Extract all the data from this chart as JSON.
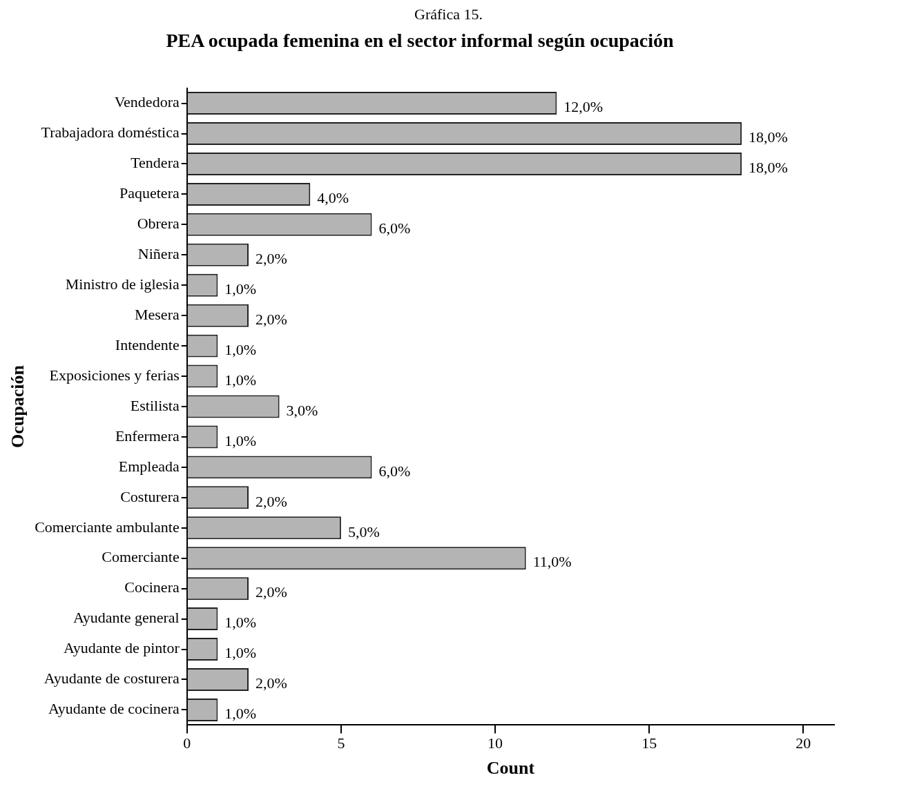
{
  "chart_data": {
    "type": "bar",
    "orientation": "horizontal",
    "title": "PEA ocupada femenina en el sector informal según ocupación",
    "xlabel": "Count",
    "ylabel": "Ocupación",
    "annotations": [
      "Gráfica 15."
    ],
    "categories": [
      "Vendedora",
      "Trabajadora doméstica",
      "Tendera",
      "Paquetera",
      "Obrera",
      "Niñera",
      "Ministro de iglesia",
      "Mesera",
      "Intendente",
      "Exposiciones y ferias",
      "Estilista",
      "Enfermera",
      "Empleada",
      "Costurera",
      "Comerciante ambulante",
      "Comerciante",
      "Cocinera",
      "Ayudante general",
      "Ayudante de pintor",
      "Ayudante de costurera",
      "Ayudante de cocinera"
    ],
    "values": [
      12,
      18,
      18,
      4,
      6,
      2,
      1,
      2,
      1,
      1,
      3,
      1,
      6,
      2,
      5,
      11,
      2,
      1,
      1,
      2,
      1
    ],
    "value_labels": [
      "12,0%",
      "18,0%",
      "18,0%",
      "4,0%",
      "6,0%",
      "2,0%",
      "1,0%",
      "2,0%",
      "1,0%",
      "1,0%",
      "3,0%",
      "1,0%",
      "6,0%",
      "2,0%",
      "5,0%",
      "11,0%",
      "2,0%",
      "1,0%",
      "1,0%",
      "2,0%",
      "1,0%"
    ],
    "color": "#b4b4b4",
    "xlim": [
      0,
      21
    ],
    "xticks": [
      0,
      5,
      10,
      15,
      20
    ]
  }
}
